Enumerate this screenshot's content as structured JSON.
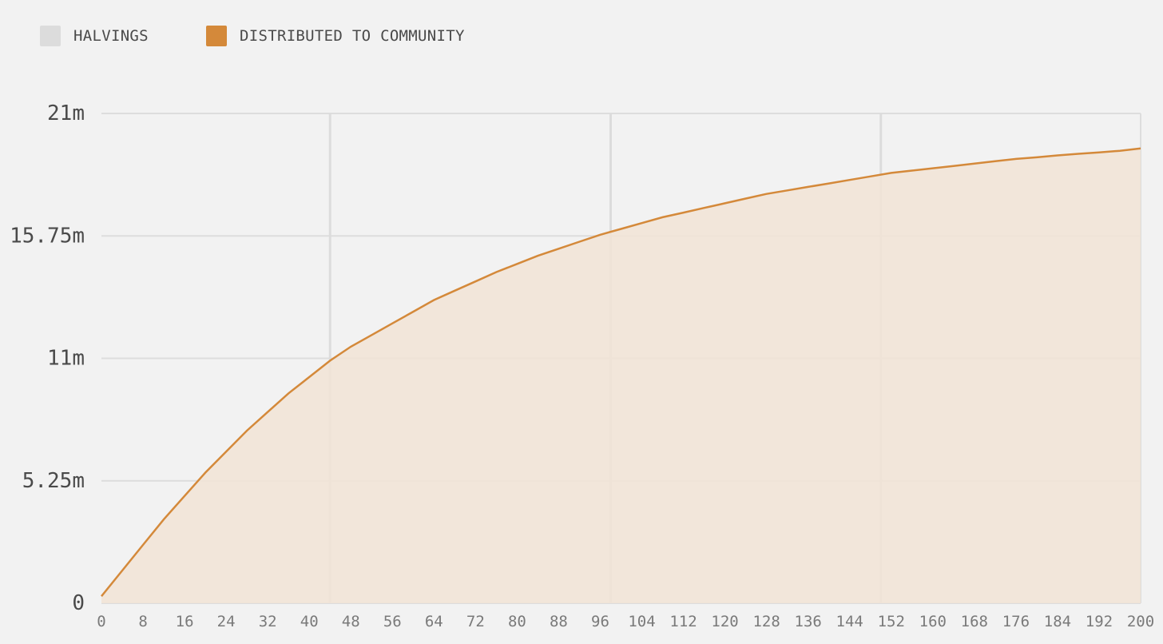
{
  "legend": [
    {
      "label": "HALVINGS",
      "color": "#dcdcdc"
    },
    {
      "label": "DISTRIBUTED TO COMMUNITY",
      "color": "#d4893a"
    }
  ],
  "chart_data": {
    "type": "area",
    "title": "",
    "xlabel": "",
    "ylabel": "",
    "xlim": [
      0,
      200
    ],
    "ylim": [
      0,
      21
    ],
    "grid": true,
    "legend_position": "top-left",
    "x_ticks": [
      "0",
      "8",
      "16",
      "24",
      "32",
      "40",
      "48",
      "56",
      "64",
      "72",
      "80",
      "88",
      "96",
      "104",
      "112",
      "120",
      "128",
      "136",
      "144",
      "152",
      "160",
      "168",
      "176",
      "184",
      "192",
      "200"
    ],
    "y_ticks": [
      {
        "value": 0,
        "label": "0"
      },
      {
        "value": 5.25,
        "label": "5.25m"
      },
      {
        "value": 10.5,
        "label": "11m"
      },
      {
        "value": 15.75,
        "label": "15.75m"
      },
      {
        "value": 21,
        "label": "21m"
      }
    ],
    "halvings": [
      {
        "x": 44,
        "label": "HALVINGS"
      },
      {
        "x": 98,
        "label": "HALVINGS"
      },
      {
        "x": 150,
        "label": "HALVINGS"
      }
    ],
    "series": [
      {
        "name": "DISTRIBUTED TO COMMUNITY",
        "color": "#d4893a",
        "fill": "#f2e4d6",
        "x": [
          0,
          4,
          8,
          12,
          16,
          20,
          24,
          28,
          32,
          36,
          40,
          44,
          48,
          52,
          56,
          60,
          64,
          68,
          72,
          76,
          80,
          84,
          88,
          92,
          96,
          100,
          104,
          108,
          112,
          116,
          120,
          124,
          128,
          132,
          136,
          140,
          144,
          148,
          152,
          156,
          160,
          164,
          168,
          172,
          176,
          180,
          184,
          188,
          192,
          196,
          200
        ],
        "y": [
          0.3,
          1.4,
          2.5,
          3.6,
          4.6,
          5.6,
          6.5,
          7.4,
          8.2,
          9.0,
          9.7,
          10.4,
          11.0,
          11.5,
          12.0,
          12.5,
          13.0,
          13.4,
          13.8,
          14.2,
          14.55,
          14.9,
          15.2,
          15.5,
          15.8,
          16.05,
          16.3,
          16.55,
          16.75,
          16.95,
          17.15,
          17.35,
          17.55,
          17.7,
          17.85,
          18.0,
          18.15,
          18.3,
          18.45,
          18.55,
          18.65,
          18.75,
          18.85,
          18.95,
          19.05,
          19.12,
          19.2,
          19.27,
          19.33,
          19.4,
          19.5
        ]
      }
    ]
  }
}
